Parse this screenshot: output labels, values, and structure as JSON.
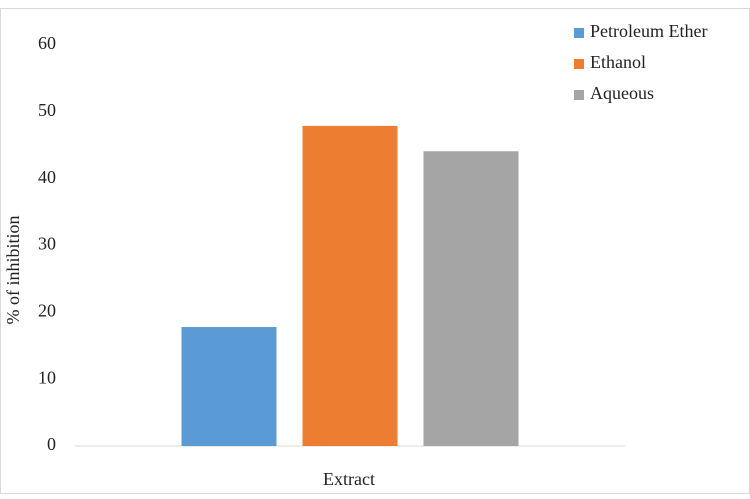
{
  "chart_data": {
    "type": "bar",
    "categories": [
      "Extract"
    ],
    "x_label": "Extract",
    "y_label": "% of inhibition",
    "series": [
      {
        "name": "Petroleum Ether",
        "color": "#5b9bd5",
        "values": [
          17.8
        ]
      },
      {
        "name": "Ethanol",
        "color": "#ed7d31",
        "values": [
          47.9
        ]
      },
      {
        "name": "Aqueous",
        "color": "#a5a5a5",
        "values": [
          44.1
        ]
      }
    ],
    "ylim": [
      0,
      60
    ],
    "yticks": [
      0,
      10,
      20,
      30,
      40,
      50,
      60
    ],
    "grid": false,
    "legend": "top-right"
  }
}
